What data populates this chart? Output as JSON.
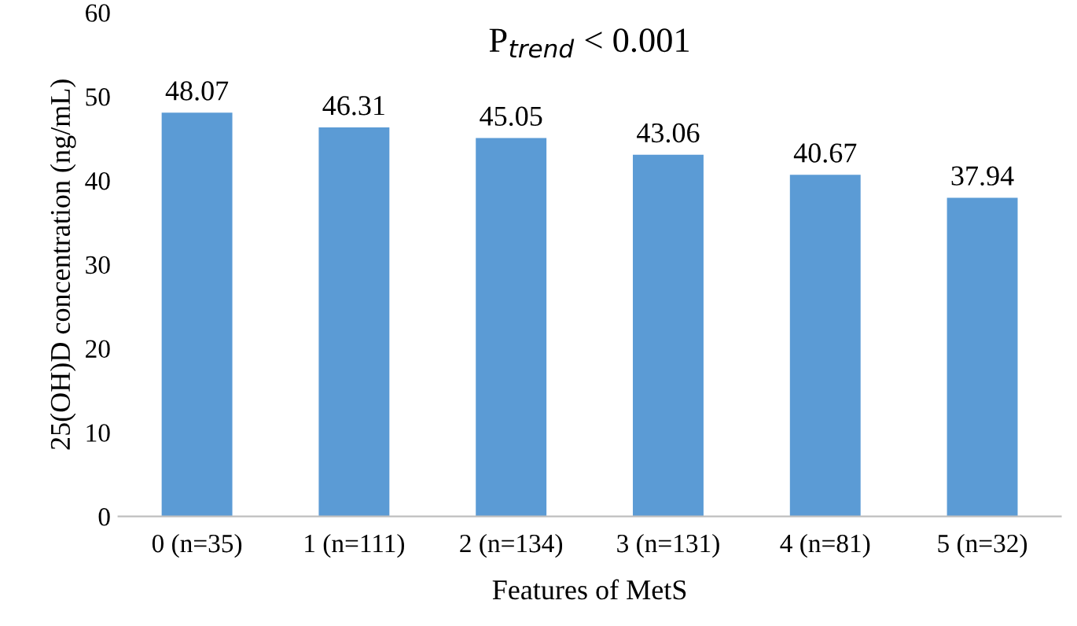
{
  "chart_data": {
    "type": "bar",
    "xlabel": "Features of MetS",
    "ylabel": "25(OH)D concentration (ng/mL)",
    "categories": [
      "0 (n=35)",
      "1 (n=111)",
      "2 (n=134)",
      "3 (n=131)",
      "4 (n=81)",
      "5 (n=32)"
    ],
    "values": [
      48.07,
      46.31,
      45.05,
      43.06,
      40.67,
      37.94
    ],
    "color": "#5b9bd5",
    "data_labels": true,
    "ylim": [
      0,
      60
    ],
    "yticks": [
      0,
      10,
      20,
      30,
      40,
      50,
      60
    ],
    "grid": false,
    "annotations": [
      "P$_{trend}$ < 0.001"
    ]
  }
}
